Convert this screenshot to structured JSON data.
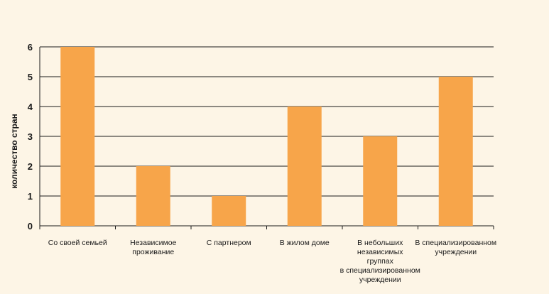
{
  "chart_data": {
    "type": "bar",
    "categories": [
      "Со своей семьей",
      "Независимое проживание",
      "С партнером",
      "В жилом доме",
      "В небольших независимых группах в специализированном учреждении",
      "В специализированном учреждении"
    ],
    "category_lines": [
      [
        "Со своей семьей"
      ],
      [
        "Независимое",
        "проживание"
      ],
      [
        "С партнером"
      ],
      [
        "В жилом доме"
      ],
      [
        "В небольших",
        "независимых",
        "группах",
        "в специализированном",
        "учреждении"
      ],
      [
        "В специализированном",
        "учреждении"
      ]
    ],
    "values": [
      6,
      2,
      1,
      4,
      3,
      5
    ],
    "yticks": [
      "0",
      "1",
      "2",
      "3",
      "4",
      "5",
      "6"
    ],
    "ylim": [
      0,
      6
    ],
    "xlabel": "",
    "ylabel": "количество стран",
    "grid": true,
    "legend": "none",
    "colors": {
      "bar": "#f7a54a",
      "background": "#fdf5e6",
      "grid": "#1a1a1a"
    }
  }
}
